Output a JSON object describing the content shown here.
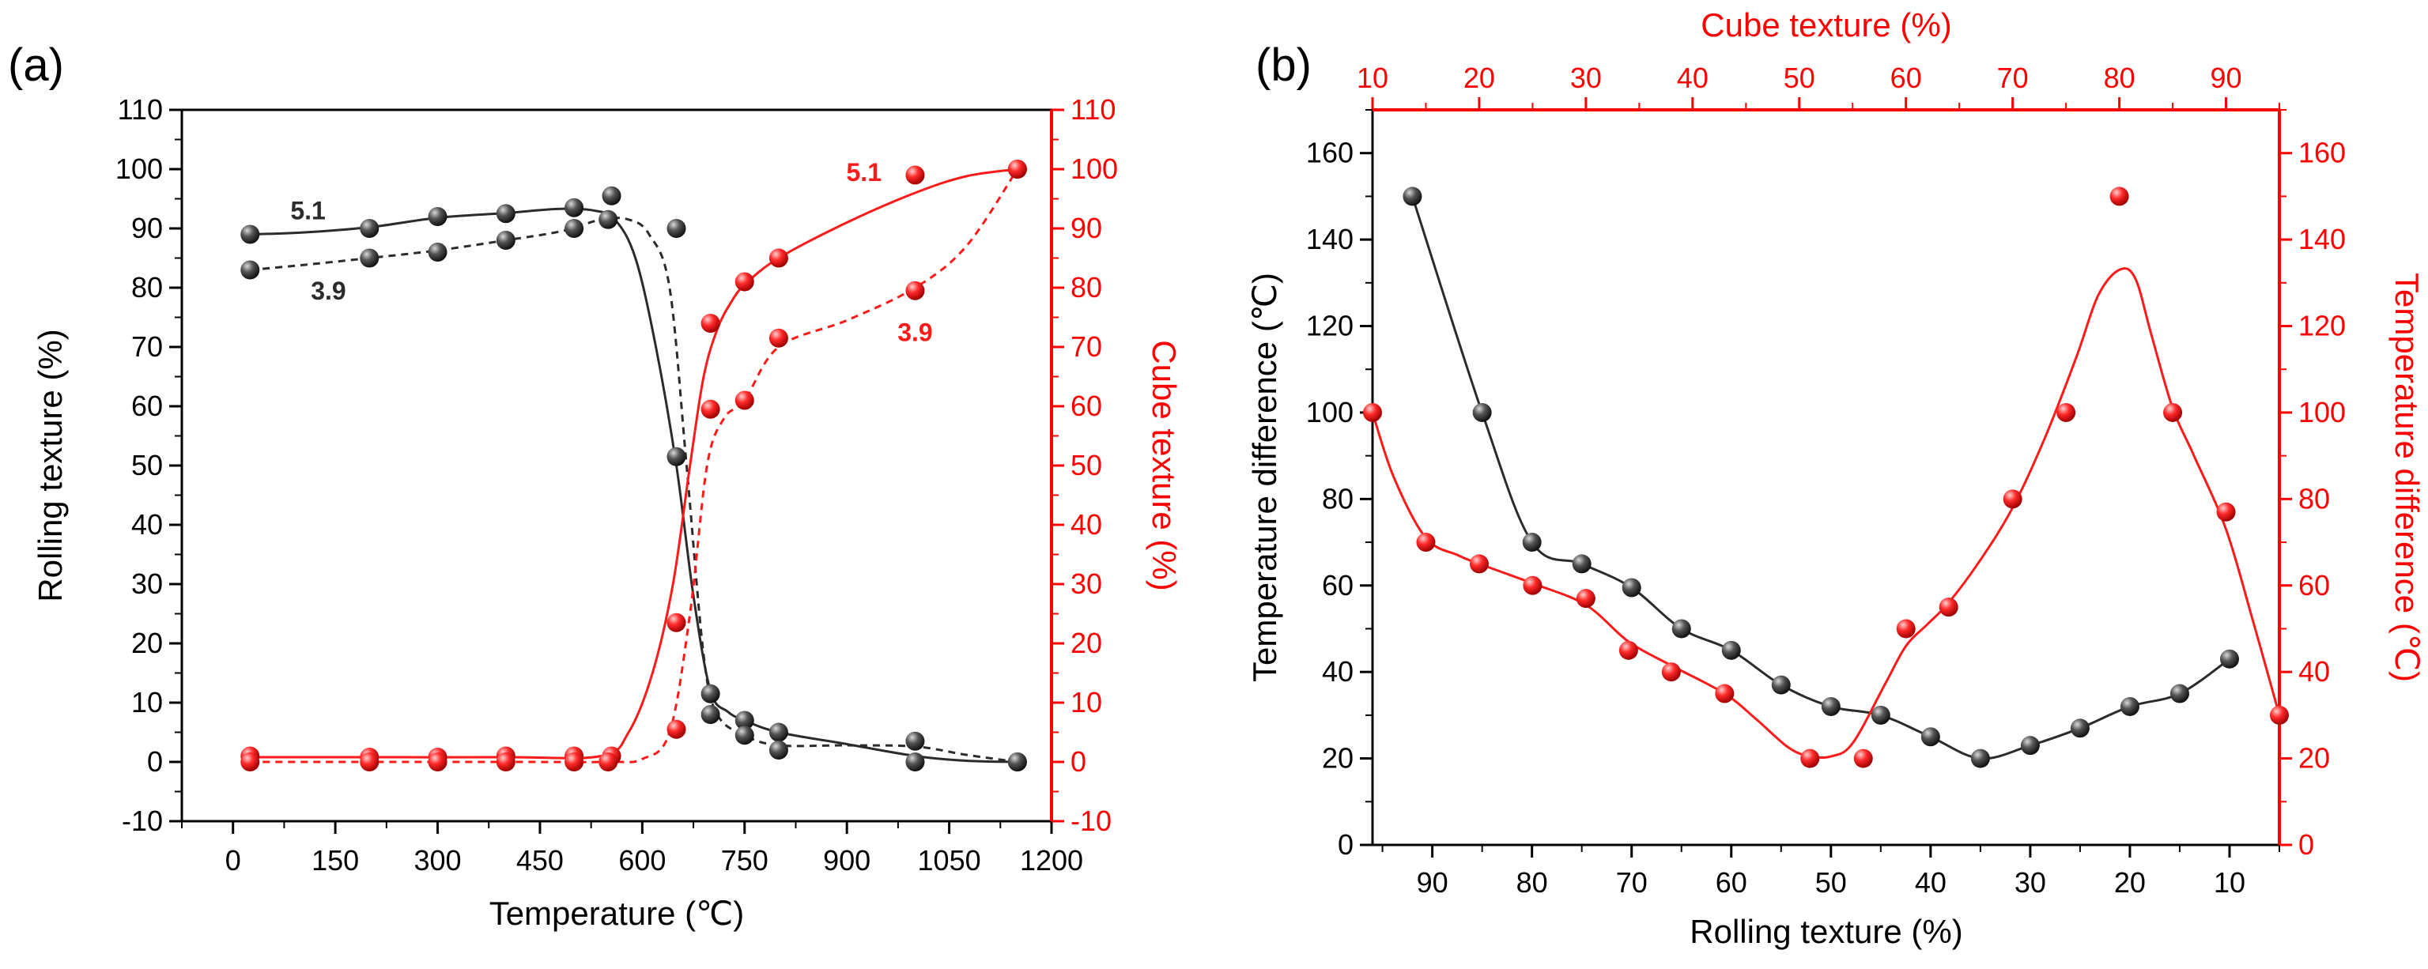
{
  "figure": {
    "panel_a_label": "(a)",
    "panel_b_label": "(b)"
  },
  "colors": {
    "black_series": "#2b2b2b",
    "red_series": "#ff1a1a",
    "axis_black": "#000000",
    "axis_red": "#ff0000"
  },
  "chart_data": [
    {
      "panel": "a",
      "type": "line",
      "xlabel": "Temperature (℃)",
      "ylabel_left": "Rolling texture (%)",
      "ylabel_right": "Cube texture (%)",
      "xlim": [
        -75,
        1200
      ],
      "xticks": [
        0,
        150,
        300,
        450,
        600,
        750,
        900,
        1050,
        1200
      ],
      "ylim_left": [
        -10,
        110
      ],
      "ylim_right": [
        -10,
        110
      ],
      "yticks": [
        -10,
        0,
        10,
        20,
        30,
        40,
        50,
        60,
        70,
        80,
        90,
        100,
        110
      ],
      "series": [
        {
          "name": "Rolling texture 5.1",
          "label": "5.1",
          "axis": "left",
          "color": "black",
          "line_style": "solid",
          "points": [
            [
              25,
              89
            ],
            [
              200,
              90
            ],
            [
              300,
              92
            ],
            [
              400,
              92.5
            ],
            [
              500,
              93.5
            ],
            [
              550,
              91.5
            ],
            [
              650,
              51.5
            ],
            [
              700,
              11.5
            ],
            [
              750,
              7
            ],
            [
              800,
              5
            ],
            [
              1000,
              0
            ],
            [
              1150,
              0
            ]
          ],
          "curve": [
            [
              25,
              89
            ],
            [
              100,
              89.3
            ],
            [
              200,
              90.2
            ],
            [
              300,
              91.8
            ],
            [
              400,
              92.6
            ],
            [
              480,
              93.3
            ],
            [
              530,
              93
            ],
            [
              560,
              91.5
            ],
            [
              590,
              85
            ],
            [
              620,
              70
            ],
            [
              650,
              50
            ],
            [
              675,
              28
            ],
            [
              700,
              12
            ],
            [
              725,
              8.5
            ],
            [
              750,
              7
            ],
            [
              800,
              5
            ],
            [
              900,
              3
            ],
            [
              1000,
              1
            ],
            [
              1075,
              0.2
            ],
            [
              1150,
              0
            ]
          ]
        },
        {
          "name": "Rolling texture 3.9",
          "label": "3.9",
          "axis": "left",
          "color": "black",
          "line_style": "dashed",
          "points": [
            [
              25,
              83
            ],
            [
              200,
              85
            ],
            [
              300,
              86
            ],
            [
              400,
              88
            ],
            [
              500,
              90
            ],
            [
              555,
              95.5
            ],
            [
              650,
              90
            ],
            [
              700,
              8
            ],
            [
              750,
              4.5
            ],
            [
              800,
              2
            ],
            [
              1000,
              3.5
            ],
            [
              1150,
              0
            ]
          ],
          "curve": [
            [
              25,
              83
            ],
            [
              100,
              83.8
            ],
            [
              200,
              85
            ],
            [
              300,
              86.3
            ],
            [
              400,
              88
            ],
            [
              480,
              89.5
            ],
            [
              540,
              91.5
            ],
            [
              580,
              91.5
            ],
            [
              610,
              89
            ],
            [
              640,
              80
            ],
            [
              665,
              50
            ],
            [
              690,
              18
            ],
            [
              710,
              8
            ],
            [
              750,
              4.5
            ],
            [
              800,
              2.8
            ],
            [
              900,
              2.8
            ],
            [
              1000,
              2.6
            ],
            [
              1075,
              1.2
            ],
            [
              1150,
              0
            ]
          ]
        },
        {
          "name": "Cube texture 5.1",
          "label": "5.1",
          "axis": "right",
          "color": "red",
          "line_style": "solid",
          "points": [
            [
              25,
              1
            ],
            [
              200,
              0.8
            ],
            [
              300,
              0.8
            ],
            [
              400,
              1
            ],
            [
              500,
              1
            ],
            [
              555,
              1
            ],
            [
              650,
              23.5
            ],
            [
              700,
              74
            ],
            [
              750,
              81
            ],
            [
              800,
              85
            ],
            [
              1000,
              99
            ],
            [
              1150,
              100
            ]
          ],
          "curve": [
            [
              25,
              0.8
            ],
            [
              200,
              0.8
            ],
            [
              400,
              0.8
            ],
            [
              540,
              1
            ],
            [
              580,
              5
            ],
            [
              615,
              15
            ],
            [
              645,
              30
            ],
            [
              670,
              50
            ],
            [
              690,
              65
            ],
            [
              710,
              73
            ],
            [
              730,
              77.5
            ],
            [
              750,
              80.5
            ],
            [
              800,
              85
            ],
            [
              900,
              91
            ],
            [
              1000,
              96
            ],
            [
              1075,
              98.8
            ],
            [
              1150,
              100
            ]
          ]
        },
        {
          "name": "Cube texture 3.9",
          "label": "3.9",
          "axis": "right",
          "color": "red",
          "line_style": "dashed",
          "points": [
            [
              25,
              0
            ],
            [
              200,
              0
            ],
            [
              300,
              0
            ],
            [
              400,
              0
            ],
            [
              500,
              0
            ],
            [
              550,
              0
            ],
            [
              650,
              5.5
            ],
            [
              700,
              59.5
            ],
            [
              750,
              61
            ],
            [
              800,
              71.5
            ],
            [
              1000,
              79.5
            ],
            [
              1150,
              100
            ]
          ],
          "curve": [
            [
              25,
              0
            ],
            [
              400,
              0
            ],
            [
              550,
              0
            ],
            [
              600,
              0.5
            ],
            [
              640,
              5
            ],
            [
              670,
              25
            ],
            [
              695,
              50
            ],
            [
              720,
              58
            ],
            [
              750,
              61
            ],
            [
              800,
              70
            ],
            [
              900,
              74.5
            ],
            [
              1000,
              80
            ],
            [
              1075,
              87
            ],
            [
              1150,
              100
            ]
          ]
        }
      ],
      "annotations": [
        {
          "text": "5.1",
          "series": "Rolling texture 5.1",
          "x": 110,
          "y": 93
        },
        {
          "text": "3.9",
          "series": "Rolling texture 3.9",
          "x": 140,
          "y": 79.5
        },
        {
          "text": "5.1",
          "series": "Cube texture 5.1",
          "x": 925,
          "y": 99.5
        },
        {
          "text": "3.9",
          "series": "Cube texture 3.9",
          "x": 1000,
          "y": 72.5
        }
      ]
    },
    {
      "panel": "b",
      "type": "line",
      "xlabel_bottom": "Rolling texture (%)",
      "xlabel_top": "Cube texture (%)",
      "ylabel_left": "Temperature difference (℃)",
      "ylabel_right": "Temperature difference (℃)",
      "xlim_bottom": [
        96,
        5
      ],
      "xticks_bottom": [
        90,
        80,
        70,
        60,
        50,
        40,
        30,
        20,
        10
      ],
      "xlim_top": [
        10,
        95
      ],
      "xticks_top": [
        10,
        20,
        30,
        40,
        50,
        60,
        70,
        80,
        90
      ],
      "ylim_left": [
        0,
        170
      ],
      "ylim_right": [
        0,
        170
      ],
      "yticks": [
        0,
        20,
        40,
        60,
        80,
        100,
        120,
        140,
        160
      ],
      "series": [
        {
          "name": "Temperature difference vs rolling texture",
          "axis": "bottom-left",
          "color": "black",
          "line_style": "solid",
          "points": [
            [
              92,
              150
            ],
            [
              85,
              100
            ],
            [
              80,
              70
            ],
            [
              75,
              65
            ],
            [
              70,
              59.5
            ],
            [
              65,
              50
            ],
            [
              60,
              45
            ],
            [
              55,
              37
            ],
            [
              50,
              32
            ],
            [
              45,
              30
            ],
            [
              40,
              25
            ],
            [
              35,
              20
            ],
            [
              30,
              23
            ],
            [
              25,
              27
            ],
            [
              20,
              32
            ],
            [
              15,
              35
            ],
            [
              10,
              43
            ]
          ]
        },
        {
          "name": "Temperature difference vs cube texture",
          "axis": "top-right",
          "color": "red",
          "line_style": "solid",
          "points": [
            [
              10,
              100
            ],
            [
              15,
              70
            ],
            [
              20,
              65
            ],
            [
              25,
              60
            ],
            [
              30,
              57
            ],
            [
              34,
              45
            ],
            [
              38,
              40
            ],
            [
              43,
              35
            ],
            [
              51,
              20
            ],
            [
              56,
              20
            ],
            [
              60,
              50
            ],
            [
              64,
              55
            ],
            [
              70,
              80
            ],
            [
              75,
              100
            ],
            [
              80,
              150
            ],
            [
              85,
              100
            ],
            [
              90,
              77
            ],
            [
              95,
              30
            ]
          ],
          "curve": [
            [
              10,
              100
            ],
            [
              12,
              85
            ],
            [
              15,
              71
            ],
            [
              18,
              67
            ],
            [
              20,
              65
            ],
            [
              25,
              60.5
            ],
            [
              30,
              55.5
            ],
            [
              34,
              47
            ],
            [
              38,
              41.5
            ],
            [
              43,
              35
            ],
            [
              46,
              29
            ],
            [
              49,
              22.5
            ],
            [
              51,
              20.5
            ],
            [
              53,
              20.5
            ],
            [
              55,
              23.5
            ],
            [
              58,
              37
            ],
            [
              60,
              46
            ],
            [
              62,
              51
            ],
            [
              64,
              56
            ],
            [
              67,
              66
            ],
            [
              70,
              78
            ],
            [
              73,
              94
            ],
            [
              76,
              113
            ],
            [
              78,
              127
            ],
            [
              80,
              133
            ],
            [
              81.5,
              131
            ],
            [
              83,
              118
            ],
            [
              85,
              101
            ],
            [
              87,
              90
            ],
            [
              90,
              73
            ],
            [
              92.5,
              52
            ],
            [
              95,
              30
            ]
          ]
        }
      ]
    }
  ]
}
